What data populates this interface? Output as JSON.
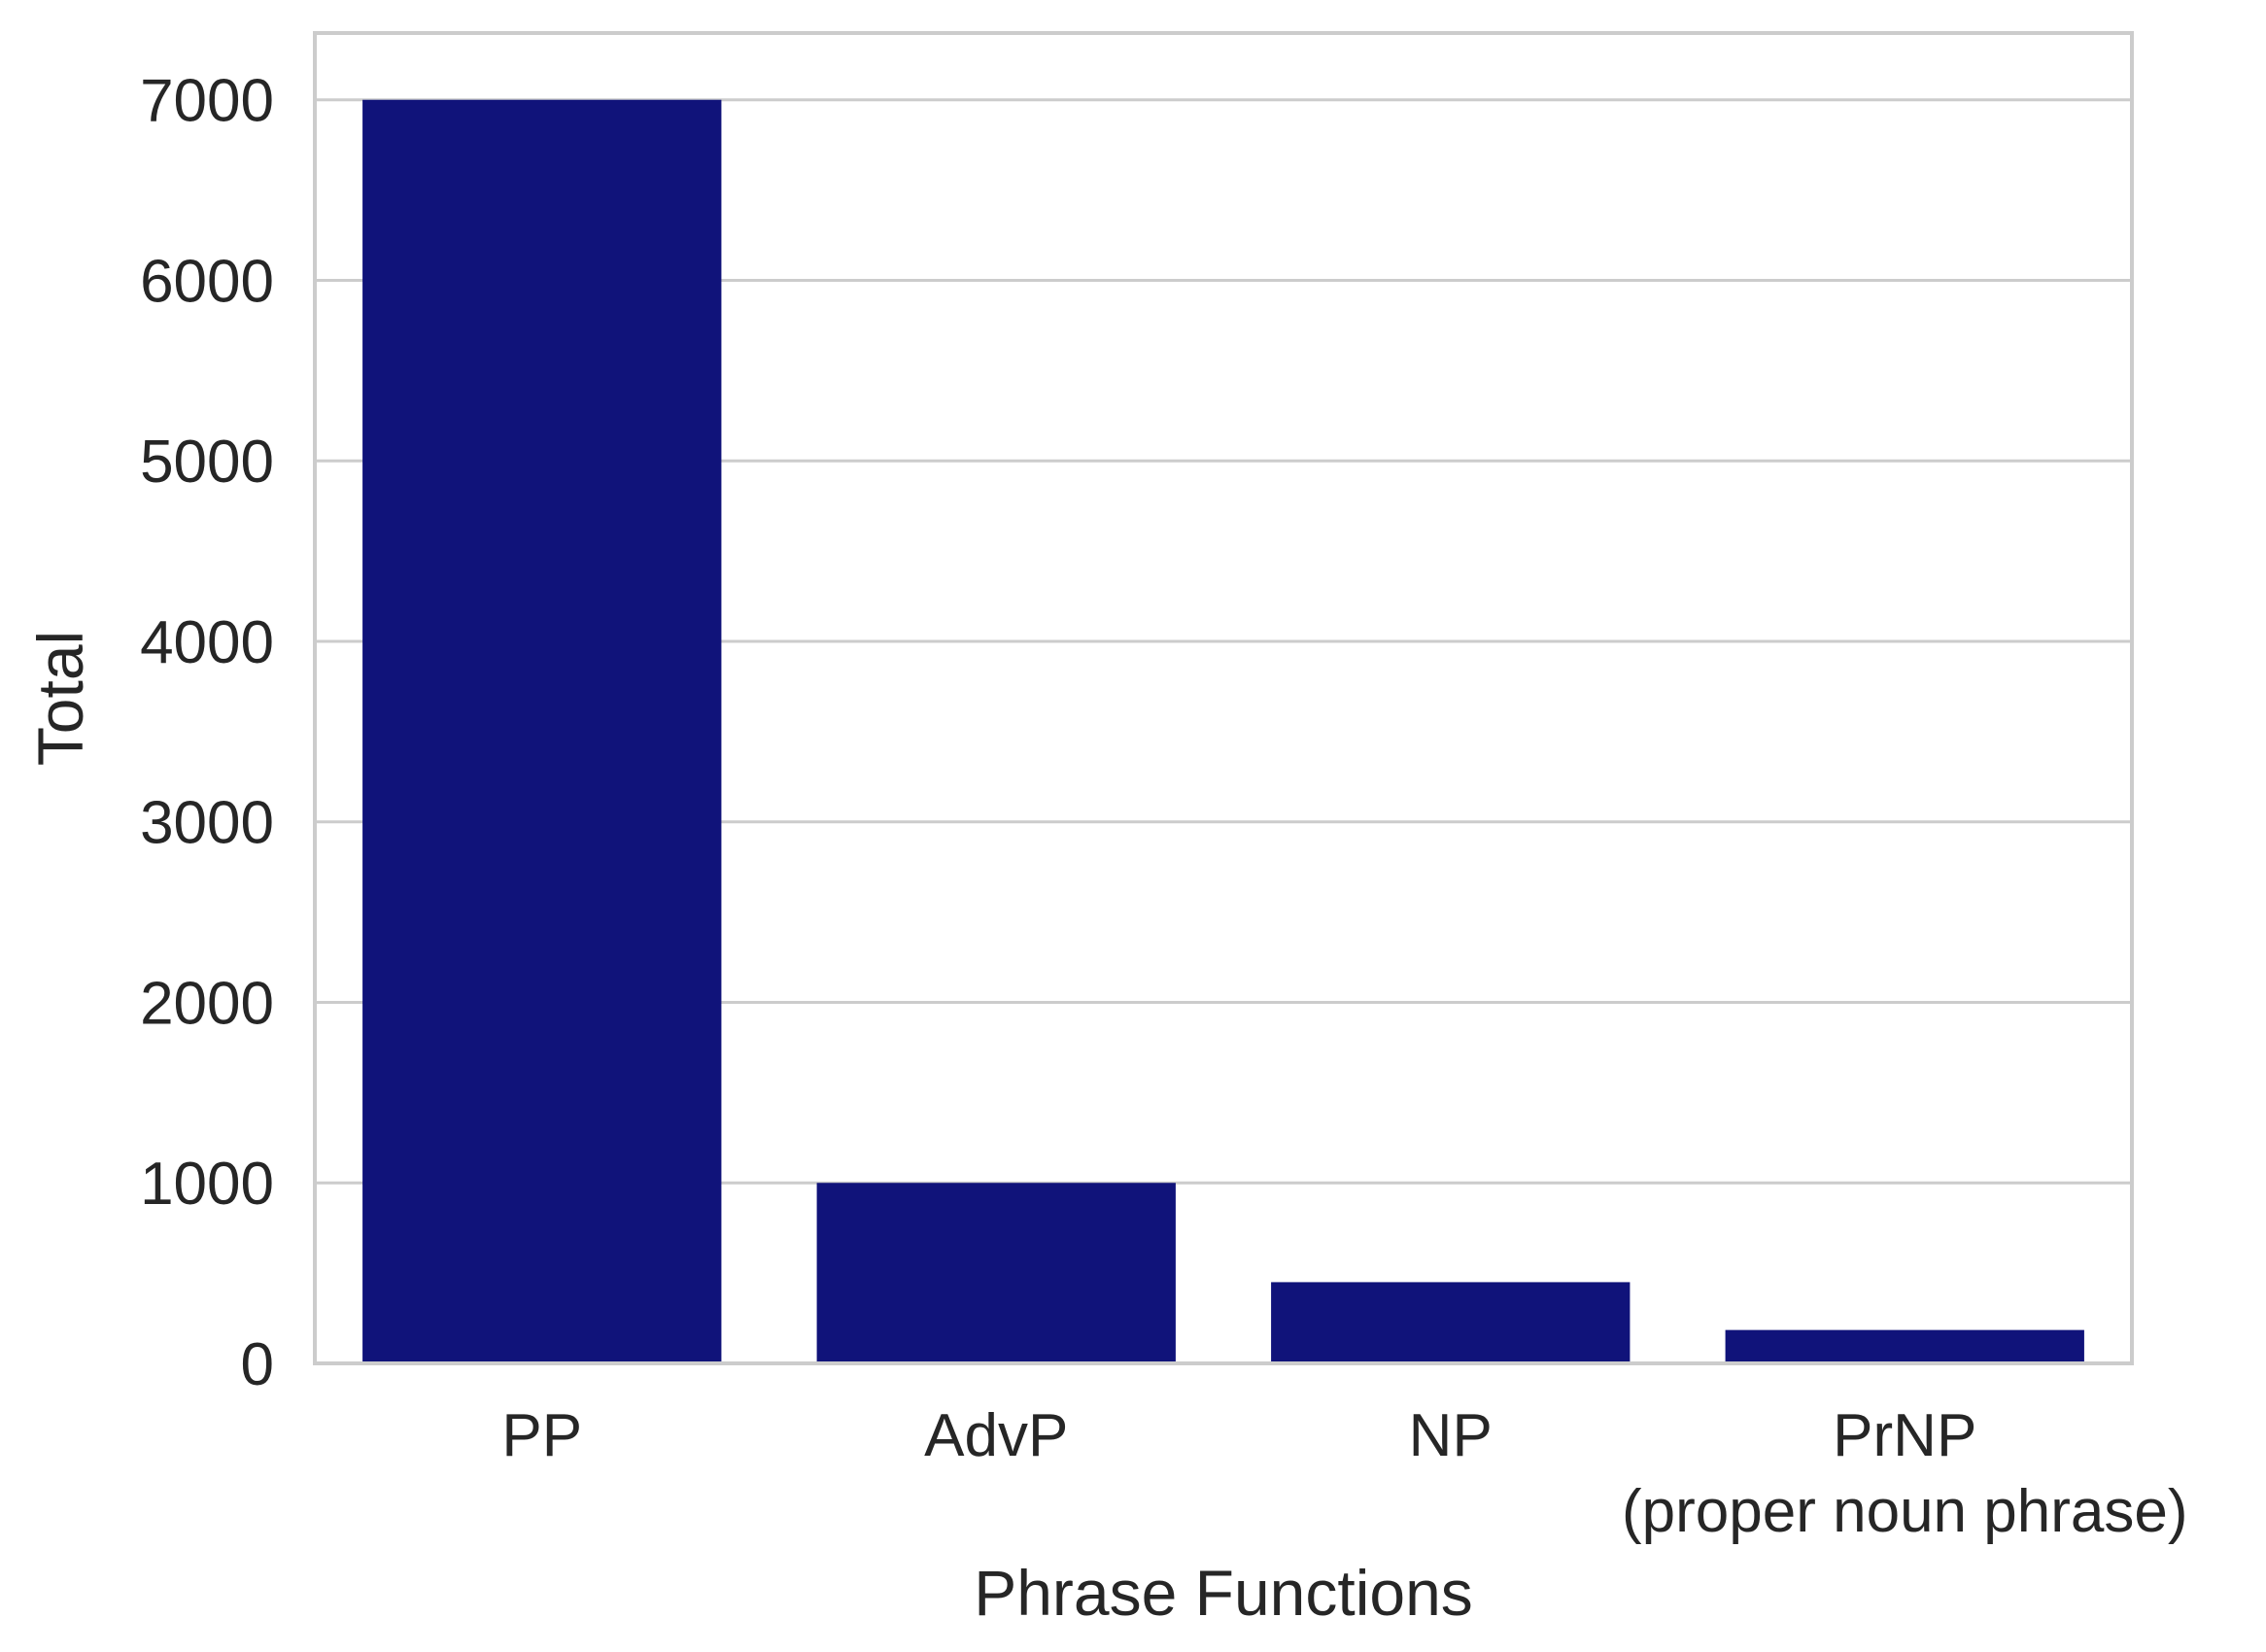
{
  "chart_data": {
    "type": "bar",
    "title": "",
    "xlabel": "Phrase Functions",
    "ylabel": "Total",
    "categories": [
      [
        "PP"
      ],
      [
        "AdvP"
      ],
      [
        "NP"
      ],
      [
        "PrNP",
        "(proper noun phrase)"
      ]
    ],
    "values": [
      7000,
      1000,
      450,
      185
    ],
    "ylim": [
      0,
      7370
    ],
    "yticks": [
      0,
      1000,
      2000,
      3000,
      4000,
      5000,
      6000,
      7000
    ],
    "grid": true,
    "bar_color": "#10137a",
    "grid_color": "#cccccc",
    "spine_color": "#cccccc"
  }
}
